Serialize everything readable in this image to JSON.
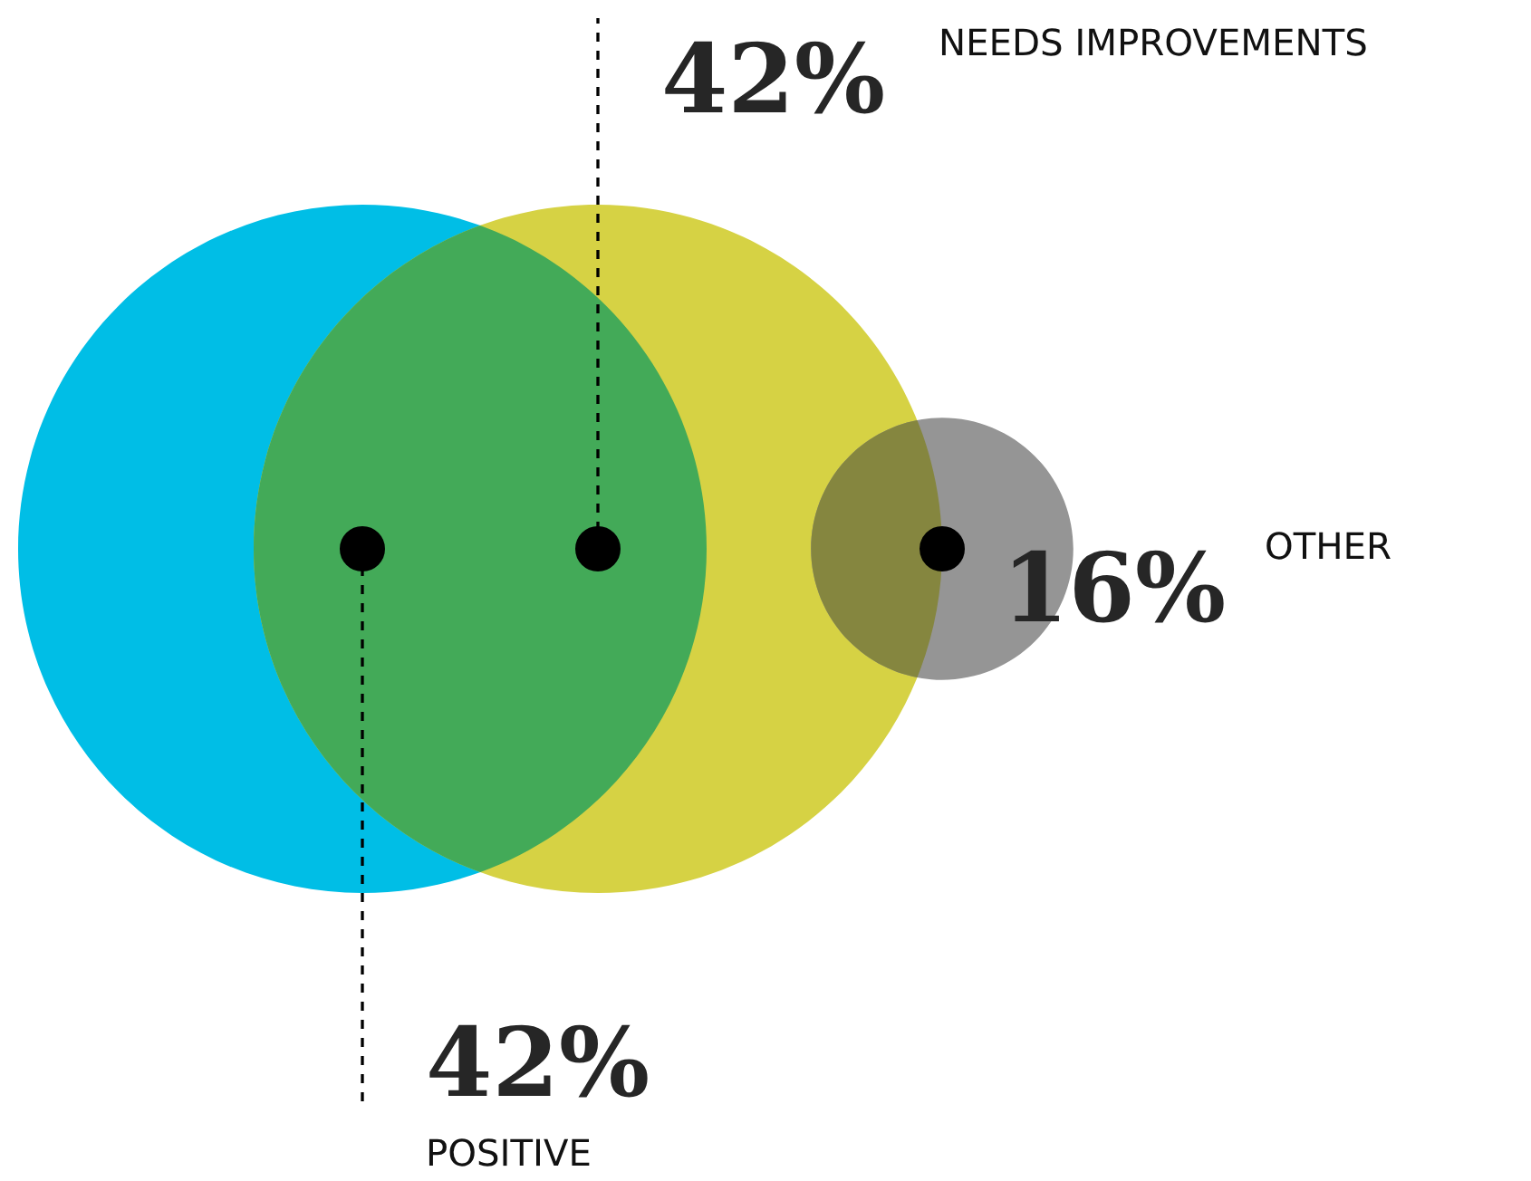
{
  "chart_data": {
    "type": "other",
    "categories": [
      "POSITIVE",
      "NEEDS IMPROVEMENTS",
      "OTHER"
    ],
    "values": [
      42,
      42,
      16
    ],
    "value_labels": [
      "42%",
      "42%",
      "16%"
    ],
    "colors": [
      "#00bee6",
      "#d6d244",
      "#959595"
    ]
  }
}
